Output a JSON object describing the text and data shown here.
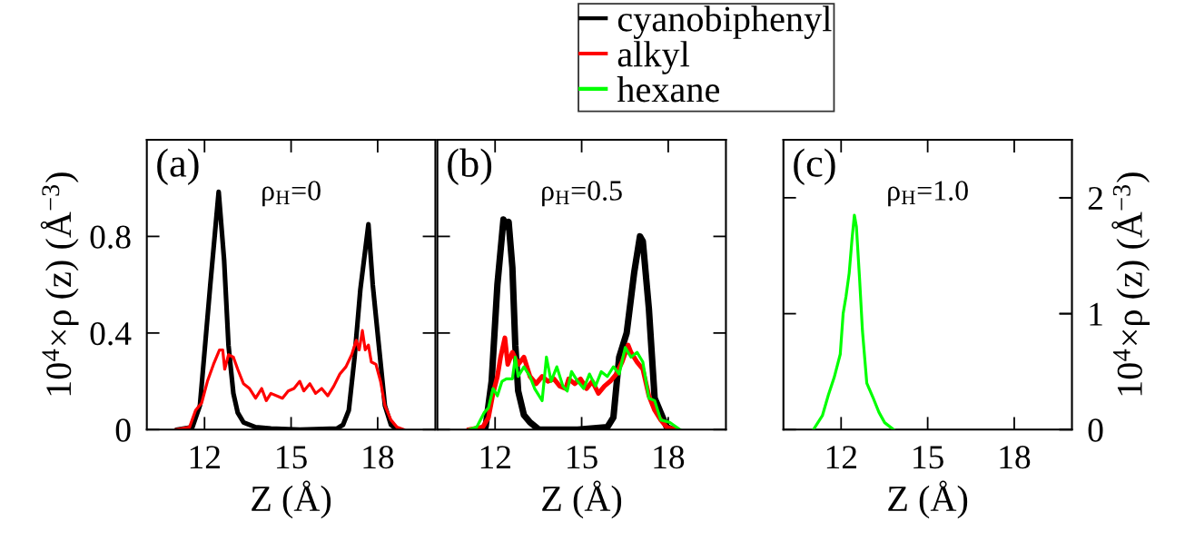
{
  "chart_data": [
    {
      "type": "line",
      "annotations": [
        "(a)",
        "ρ$_{H}$=0"
      ],
      "xlabel": "Z (Å)",
      "ylabel": "10$^{4}$×ρ (z) (Å$^{−3}$)",
      "xlim": [
        10,
        20
      ],
      "xticks": [
        12,
        15,
        18
      ],
      "ylim": [
        0,
        1.2
      ],
      "yticks": [
        0,
        0.4,
        0.8,
        {
          "value": 1.2,
          "label": null
        }
      ],
      "grid": false,
      "line_style": "solid",
      "marker": "none",
      "series": [
        {
          "color": "#000000",
          "x": [
            11.06,
            11.58,
            11.84,
            12.2,
            12.49,
            12.68,
            12.83,
            13.0,
            13.15,
            13.35,
            13.77,
            14.3,
            15.3,
            16.6,
            16.8,
            17.0,
            17.2,
            17.4,
            17.68,
            17.83,
            18.04,
            18.25,
            18.46,
            18.67
          ],
          "values": [
            0,
            0.01,
            0.1,
            0.6,
            0.985,
            0.7,
            0.35,
            0.15,
            0.07,
            0.03,
            0.01,
            0.005,
            0,
            0.005,
            0.02,
            0.08,
            0.3,
            0.58,
            0.85,
            0.6,
            0.35,
            0.1,
            0.02,
            0
          ]
        },
        {
          "color": "#ff0000",
          "x": [
            11.0,
            11.48,
            11.69,
            11.9,
            12.1,
            12.31,
            12.52,
            12.63,
            12.7,
            12.83,
            13.0,
            13.15,
            13.35,
            13.56,
            13.77,
            13.98,
            14.14,
            14.3,
            14.7,
            14.9,
            15.1,
            15.3,
            15.44,
            15.65,
            15.85,
            16.06,
            16.27,
            16.48,
            16.69,
            16.9,
            17.1,
            17.26,
            17.36,
            17.47,
            17.57,
            17.68,
            17.78,
            17.94,
            18.1,
            18.25,
            18.46,
            18.67,
            18.9
          ],
          "values": [
            0,
            0.01,
            0.08,
            0.11,
            0.2,
            0.27,
            0.33,
            0.33,
            0.25,
            0.31,
            0.3,
            0.25,
            0.19,
            0.17,
            0.13,
            0.17,
            0.12,
            0.15,
            0.13,
            0.16,
            0.17,
            0.2,
            0.16,
            0.19,
            0.15,
            0.17,
            0.14,
            0.18,
            0.23,
            0.26,
            0.31,
            0.37,
            0.33,
            0.41,
            0.33,
            0.35,
            0.28,
            0.27,
            0.2,
            0.1,
            0.04,
            0.01,
            0
          ]
        }
      ]
    },
    {
      "type": "line",
      "annotations": [
        "(b)",
        "ρ$_{H}$=0.5"
      ],
      "xlabel": "Z (Å)",
      "xlim": [
        10,
        20
      ],
      "xticks": [
        12,
        15,
        18
      ],
      "ylim": [
        0,
        1.2
      ],
      "yticks": [
        0,
        0.4,
        0.8,
        {
          "value": 1.2,
          "label": null
        }
      ],
      "tick_labels": "x",
      "grid": false,
      "legend": "top",
      "line_style": "solid",
      "marker": "none",
      "series": [
        {
          "name": "cyanobiphenyl",
          "color": "#000000",
          "x": [
            11.41,
            11.67,
            11.88,
            12.08,
            12.29,
            12.39,
            12.47,
            12.6,
            12.7,
            12.8,
            13.0,
            13.21,
            13.52,
            14.86,
            15.89,
            16.1,
            16.3,
            16.56,
            16.82,
            17.02,
            17.12,
            17.33,
            17.53,
            17.74,
            17.95,
            18.15
          ],
          "values": [
            0,
            0.01,
            0.2,
            0.6,
            0.87,
            0.84,
            0.86,
            0.67,
            0.35,
            0.16,
            0.06,
            0.03,
            0,
            0,
            0.01,
            0.05,
            0.3,
            0.4,
            0.65,
            0.8,
            0.78,
            0.5,
            0.13,
            0.07,
            0.01,
            0
          ]
        },
        {
          "name": "alkyl",
          "color": "#ff0000",
          "x": [
            11.1,
            11.57,
            11.77,
            11.93,
            12.08,
            12.19,
            12.34,
            12.44,
            12.6,
            12.8,
            13.0,
            13.21,
            13.42,
            13.63,
            13.83,
            14.04,
            14.24,
            14.45,
            14.55,
            14.76,
            14.96,
            15.17,
            15.37,
            15.58,
            15.79,
            15.99,
            16.2,
            16.4,
            16.61,
            16.71,
            16.92,
            17.12,
            17.33,
            17.53,
            17.74,
            17.95,
            18.25
          ],
          "values": [
            0,
            0.01,
            0.05,
            0.15,
            0.22,
            0.3,
            0.38,
            0.27,
            0.32,
            0.27,
            0.3,
            0.22,
            0.19,
            0.22,
            0.2,
            0.21,
            0.18,
            0.17,
            0.21,
            0.19,
            0.21,
            0.17,
            0.2,
            0.15,
            0.18,
            0.2,
            0.23,
            0.28,
            0.35,
            0.32,
            0.28,
            0.25,
            0.14,
            0.08,
            0.04,
            0.01,
            0
          ]
        },
        {
          "name": "hexane",
          "color": "#00ff00",
          "x": [
            11.1,
            11.36,
            11.62,
            11.77,
            11.93,
            12.08,
            12.24,
            12.39,
            12.6,
            12.7,
            12.8,
            13.0,
            13.21,
            13.37,
            13.63,
            13.78,
            13.94,
            14.14,
            14.35,
            14.5,
            14.65,
            14.86,
            15.07,
            15.27,
            15.48,
            15.68,
            15.89,
            16.1,
            16.3,
            16.51,
            16.71,
            16.92,
            17.12,
            17.33,
            17.53,
            17.74,
            18.05,
            18.41
          ],
          "values": [
            0,
            0.01,
            0.07,
            0.09,
            0.17,
            0.14,
            0.2,
            0.21,
            0.21,
            0.3,
            0.22,
            0.26,
            0.22,
            0.17,
            0.12,
            0.3,
            0.2,
            0.26,
            0.18,
            0.16,
            0.24,
            0.2,
            0.17,
            0.23,
            0.18,
            0.24,
            0.22,
            0.26,
            0.23,
            0.34,
            0.3,
            0.32,
            0.28,
            0.13,
            0.12,
            0.04,
            0.03,
            0
          ]
        }
      ]
    },
    {
      "type": "line",
      "annotations": [
        "(c)",
        "ρ$_{H}$=1.0"
      ],
      "xlabel": "Z (Å)",
      "y2label": "10$^{4}$×ρ (z) (Å$^{−3}$)",
      "xlim": [
        10,
        20
      ],
      "xticks": [
        12,
        15,
        18
      ],
      "y2lim": [
        0,
        2.5
      ],
      "y2ticks": [
        0,
        1,
        2
      ],
      "grid": false,
      "line_style": "solid",
      "marker": "none",
      "series": [
        {
          "color": "#00ff00",
          "axis": "y2",
          "x": [
            11.04,
            11.35,
            11.56,
            11.76,
            11.97,
            12.07,
            12.17,
            12.28,
            12.38,
            12.46,
            12.53,
            12.64,
            12.74,
            12.89,
            13.1,
            13.31,
            13.51,
            13.82
          ],
          "values": [
            0,
            0.12,
            0.3,
            0.45,
            0.65,
            1.0,
            1.15,
            1.35,
            1.65,
            1.85,
            1.75,
            1.3,
            0.85,
            0.4,
            0.28,
            0.15,
            0.06,
            0
          ]
        }
      ]
    }
  ]
}
